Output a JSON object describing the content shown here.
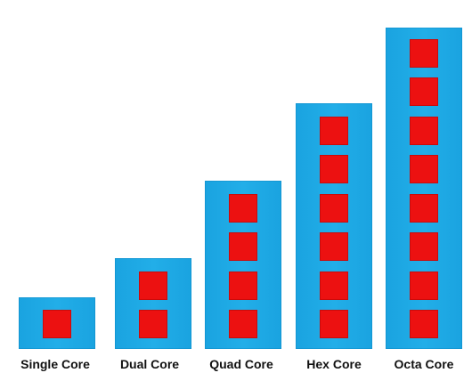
{
  "colors": {
    "block": "#22aee8",
    "core": "#ec1111",
    "label": "#111111"
  },
  "processors": [
    {
      "label": "Single Core",
      "cores": 1
    },
    {
      "label": "Dual Core",
      "cores": 2
    },
    {
      "label": "Quad Core",
      "cores": 4
    },
    {
      "label": "Hex Core",
      "cores": 6
    },
    {
      "label": "Octa Core",
      "cores": 8
    }
  ]
}
